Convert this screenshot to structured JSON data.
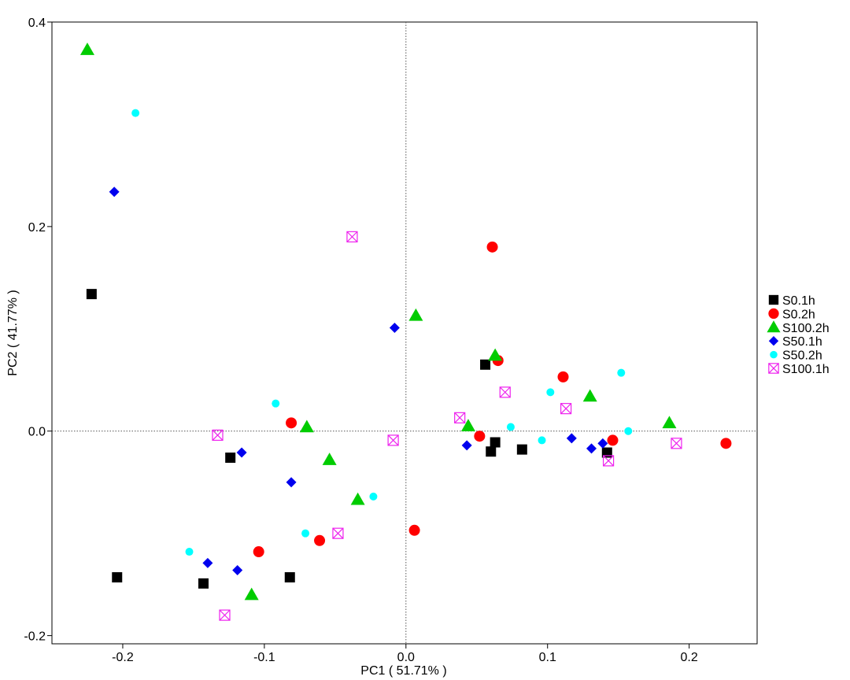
{
  "chart_data": {
    "type": "scatter",
    "xlabel": "PC1 ( 51.71% )",
    "ylabel": "PC2 ( 41.77% )",
    "xlim": [
      -0.25,
      0.248
    ],
    "ylim": [
      -0.208,
      0.4
    ],
    "x_ticks": [
      -0.2,
      -0.1,
      0.0,
      0.1,
      0.2
    ],
    "x_tick_labels": [
      "-0.2",
      "-0.1",
      "0.0",
      "0.1",
      "0.2"
    ],
    "y_ticks": [
      -0.2,
      0.0,
      0.2,
      0.4
    ],
    "y_tick_labels": [
      "-0.2",
      "0.0",
      "0.2",
      "0.4"
    ],
    "reference_lines": {
      "x": 0,
      "y": 0,
      "style": "dotted"
    },
    "grid": false,
    "legend_position": "right",
    "series": [
      {
        "name": "S0.1h",
        "marker": "square",
        "color": "#000000",
        "points": [
          [
            -0.222,
            0.134
          ],
          [
            -0.204,
            -0.143
          ],
          [
            -0.143,
            -0.149
          ],
          [
            -0.124,
            -0.026
          ],
          [
            -0.082,
            -0.143
          ],
          [
            0.056,
            0.065
          ],
          [
            0.06,
            -0.02
          ],
          [
            0.063,
            -0.011
          ],
          [
            0.082,
            -0.018
          ],
          [
            0.142,
            -0.021
          ]
        ]
      },
      {
        "name": "S0.2h",
        "marker": "circle",
        "color": "#ff0000",
        "points": [
          [
            -0.104,
            -0.118
          ],
          [
            -0.081,
            0.008
          ],
          [
            -0.061,
            -0.107
          ],
          [
            0.006,
            -0.097
          ],
          [
            0.052,
            -0.005
          ],
          [
            0.061,
            0.18
          ],
          [
            0.065,
            0.069
          ],
          [
            0.111,
            0.053
          ],
          [
            0.146,
            -0.009
          ],
          [
            0.226,
            -0.012
          ]
        ]
      },
      {
        "name": "S100.2h",
        "marker": "triangle",
        "color": "#00cc00",
        "points": [
          [
            -0.225,
            0.373
          ],
          [
            -0.109,
            -0.16
          ],
          [
            -0.07,
            0.004
          ],
          [
            -0.054,
            -0.028
          ],
          [
            -0.034,
            -0.067
          ],
          [
            0.007,
            0.113
          ],
          [
            0.044,
            0.005
          ],
          [
            0.063,
            0.074
          ],
          [
            0.13,
            0.034
          ],
          [
            0.186,
            0.008
          ]
        ]
      },
      {
        "name": "S50.1h",
        "marker": "diamond",
        "color": "#0000ee",
        "points": [
          [
            -0.206,
            0.234
          ],
          [
            -0.14,
            -0.129
          ],
          [
            -0.119,
            -0.136
          ],
          [
            -0.116,
            -0.021
          ],
          [
            -0.081,
            -0.05
          ],
          [
            -0.008,
            0.101
          ],
          [
            0.043,
            -0.014
          ],
          [
            0.117,
            -0.007
          ],
          [
            0.131,
            -0.017
          ],
          [
            0.139,
            -0.012
          ]
        ]
      },
      {
        "name": "S50.2h",
        "marker": "circle-small",
        "color": "#00ffff",
        "points": [
          [
            -0.191,
            0.311
          ],
          [
            -0.153,
            -0.118
          ],
          [
            -0.092,
            0.027
          ],
          [
            -0.071,
            -0.1
          ],
          [
            -0.023,
            -0.064
          ],
          [
            0.074,
            0.004
          ],
          [
            0.096,
            -0.009
          ],
          [
            0.102,
            0.038
          ],
          [
            0.152,
            0.057
          ],
          [
            0.157,
            0.0
          ]
        ]
      },
      {
        "name": "S100.1h",
        "marker": "square-x",
        "color": "#ee22ee",
        "points": [
          [
            -0.038,
            0.19
          ],
          [
            -0.128,
            -0.18
          ],
          [
            -0.133,
            -0.004
          ],
          [
            -0.048,
            -0.1
          ],
          [
            -0.009,
            -0.009
          ],
          [
            0.038,
            0.013
          ],
          [
            0.07,
            0.038
          ],
          [
            0.113,
            0.022
          ],
          [
            0.143,
            -0.029
          ],
          [
            0.191,
            -0.012
          ]
        ]
      }
    ]
  }
}
